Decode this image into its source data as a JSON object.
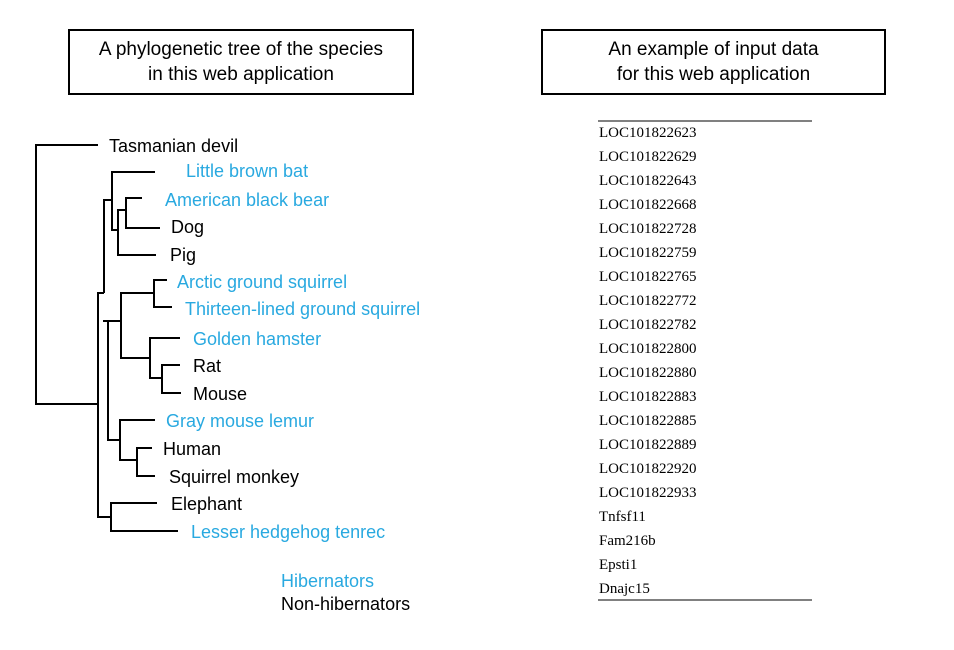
{
  "titles": {
    "tree_line1": "A phylogenetic tree of the species",
    "tree_line2": "in this web application",
    "input_line1": "An example of input data",
    "input_line2": "for this web application"
  },
  "colors": {
    "hibernator": "#29a9e0",
    "non_hibernator": "#000000"
  },
  "species": [
    {
      "name": "Tasmanian devil",
      "hibernator": false
    },
    {
      "name": "Little brown bat",
      "hibernator": true
    },
    {
      "name": "American black bear",
      "hibernator": true
    },
    {
      "name": "Dog",
      "hibernator": false
    },
    {
      "name": "Pig",
      "hibernator": false
    },
    {
      "name": "Arctic ground squirrel",
      "hibernator": true
    },
    {
      "name": "Thirteen-lined ground squirrel",
      "hibernator": true
    },
    {
      "name": "Golden hamster",
      "hibernator": true
    },
    {
      "name": "Rat",
      "hibernator": false
    },
    {
      "name": "Mouse",
      "hibernator": false
    },
    {
      "name": "Gray mouse lemur",
      "hibernator": true
    },
    {
      "name": "Human",
      "hibernator": false
    },
    {
      "name": "Squirrel monkey",
      "hibernator": false
    },
    {
      "name": "Elephant",
      "hibernator": false
    },
    {
      "name": "Lesser hedgehog tenrec",
      "hibernator": true
    }
  ],
  "legend": {
    "hibernators": "Hibernators",
    "non_hibernators": "Non-hibernators"
  },
  "genes": [
    "LOC101822623",
    "LOC101822629",
    "LOC101822643",
    "LOC101822668",
    "LOC101822728",
    "LOC101822759",
    "LOC101822765",
    "LOC101822772",
    "LOC101822782",
    "LOC101822800",
    "LOC101822880",
    "LOC101822883",
    "LOC101822885",
    "LOC101822889",
    "LOC101822920",
    "LOC101822933",
    "Tnfsf11",
    "Fam216b",
    "Epsti1",
    "Dnajc15"
  ]
}
